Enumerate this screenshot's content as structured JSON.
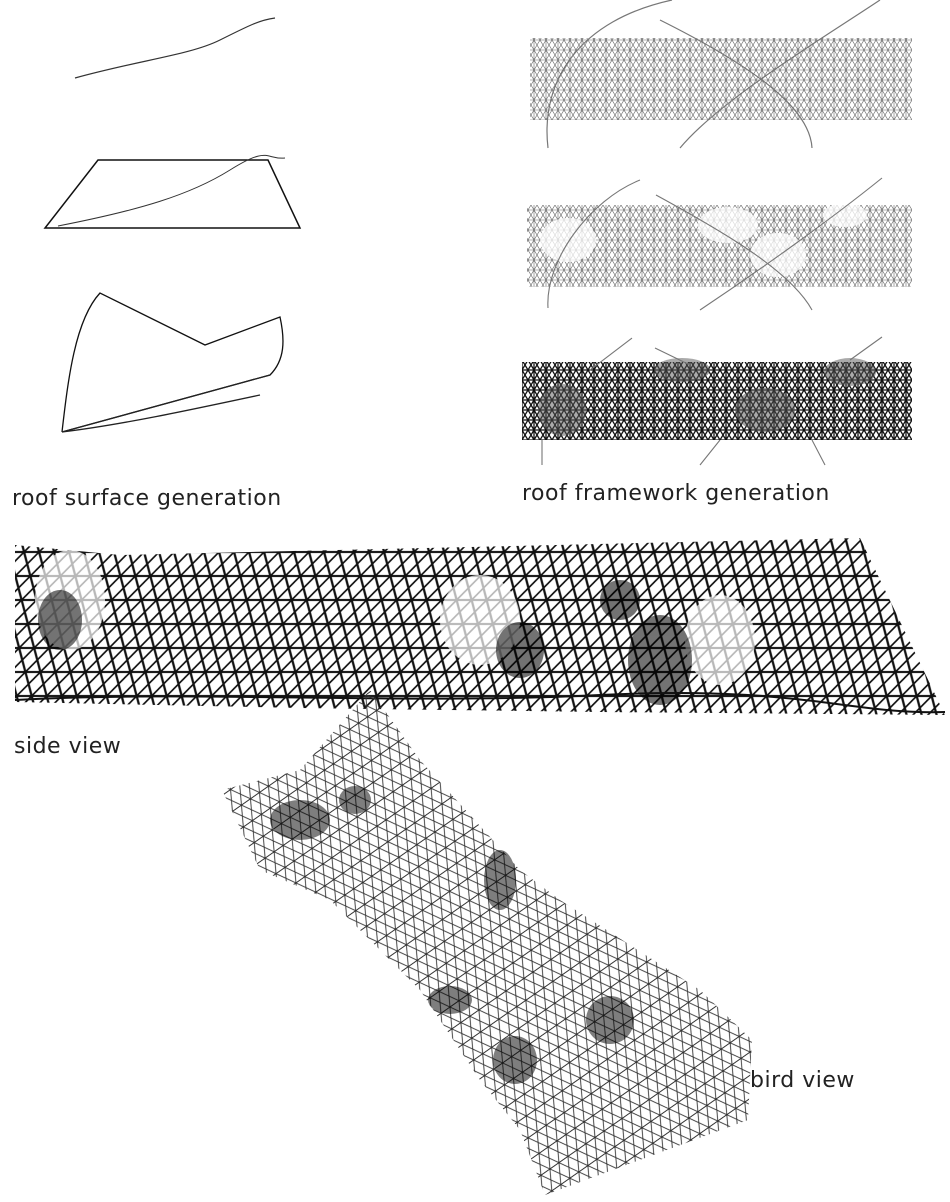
{
  "labels": {
    "surface": "roof surface generation",
    "framework": "roof framework generation",
    "side": "side view",
    "bird": "bird view"
  }
}
